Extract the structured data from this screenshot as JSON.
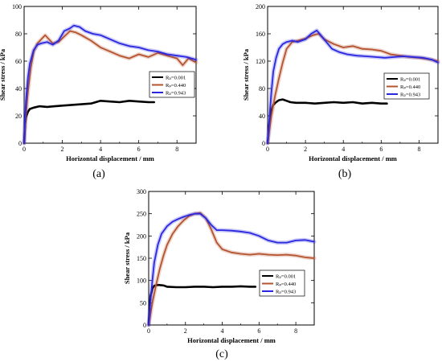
{
  "chart_data": [
    {
      "type": "line",
      "panel_label": "(a)",
      "xlabel": "Horizontal displacement / mm",
      "ylabel": "Shear stress / kPa",
      "xlim": [
        0,
        9
      ],
      "ylim": [
        0,
        100
      ],
      "xticks": [
        0,
        2,
        4,
        6,
        8
      ],
      "yticks": [
        0,
        20,
        40,
        60,
        80,
        100
      ],
      "legend_position": "right-middle",
      "series": [
        {
          "name": "Rₚ=0.001",
          "color": "#000000",
          "x": [
            0,
            0.05,
            0.1,
            0.2,
            0.3,
            0.5,
            0.8,
            1.2,
            1.6,
            2.0,
            2.5,
            3.0,
            3.5,
            4.0,
            4.5,
            5.0,
            5.5,
            6.0,
            6.5,
            6.8
          ],
          "y": [
            0,
            14,
            19,
            23,
            25,
            26,
            27,
            26.5,
            27,
            27.5,
            28,
            28.5,
            29,
            31,
            30.5,
            30,
            31,
            30.5,
            30,
            30
          ]
        },
        {
          "name": "Rₚ=0.440",
          "color": "#b5532f",
          "x": [
            0,
            0.1,
            0.2,
            0.35,
            0.5,
            0.7,
            0.9,
            1.1,
            1.3,
            1.5,
            1.8,
            2.1,
            2.4,
            2.7,
            3.0,
            3.5,
            4.0,
            4.5,
            5.0,
            5.5,
            6.0,
            6.5,
            7.0,
            7.5,
            8.0,
            8.3,
            8.6,
            9.0
          ],
          "y": [
            0,
            22,
            38,
            55,
            67,
            73,
            76,
            79,
            76,
            73,
            74,
            78,
            82,
            81,
            79,
            75,
            70,
            67,
            64,
            62,
            65,
            63,
            66,
            64,
            62,
            57,
            62,
            59
          ]
        },
        {
          "name": "Rₚ=0.943",
          "color": "#2a27e0",
          "x": [
            0,
            0.05,
            0.1,
            0.2,
            0.3,
            0.5,
            0.7,
            0.9,
            1.2,
            1.5,
            1.8,
            2.1,
            2.4,
            2.6,
            2.9,
            3.2,
            3.6,
            4.0,
            4.5,
            5.0,
            5.5,
            6.0,
            6.5,
            7.0,
            7.5,
            8.0,
            8.5,
            9.0
          ],
          "y": [
            0,
            18,
            32,
            48,
            58,
            68,
            72,
            73,
            74,
            72,
            75,
            82,
            84,
            86,
            85,
            82,
            80,
            79,
            76,
            73,
            71,
            70,
            68,
            67,
            65,
            64,
            63,
            61
          ]
        }
      ]
    },
    {
      "type": "line",
      "panel_label": "(b)",
      "xlabel": "Horizontal displacement / mm",
      "ylabel": "Shear stress / kPa",
      "xlim": [
        0,
        9
      ],
      "ylim": [
        0,
        200
      ],
      "xticks": [
        0,
        2,
        4,
        6,
        8
      ],
      "yticks": [
        0,
        40,
        80,
        120,
        160,
        200
      ],
      "legend_position": "right-middle",
      "series": [
        {
          "name": "Rₚ=0.001",
          "color": "#000000",
          "x": [
            0,
            0.1,
            0.2,
            0.3,
            0.45,
            0.6,
            0.8,
            1.0,
            1.2,
            1.5,
            2.0,
            2.5,
            3.0,
            3.5,
            4.0,
            4.5,
            5.0,
            5.5,
            6.0,
            6.3
          ],
          "y": [
            0,
            30,
            48,
            56,
            60,
            63,
            64,
            62,
            60,
            59,
            59,
            58,
            59,
            60,
            59,
            60,
            58,
            59,
            58,
            58
          ]
        },
        {
          "name": "Rₚ=0.440",
          "color": "#b5532f",
          "x": [
            0,
            0.2,
            0.4,
            0.6,
            0.8,
            1.0,
            1.3,
            1.6,
            2.0,
            2.4,
            2.7,
            3.0,
            3.5,
            4.0,
            4.5,
            5.0,
            5.5,
            6.0,
            6.5,
            7.0,
            7.5,
            8.0,
            8.5,
            9.0
          ],
          "y": [
            0,
            40,
            70,
            95,
            118,
            138,
            148,
            150,
            153,
            158,
            160,
            152,
            145,
            140,
            142,
            138,
            137,
            135,
            130,
            128,
            126,
            125,
            123,
            120
          ]
        },
        {
          "name": "Rₚ=0.943",
          "color": "#2a27e0",
          "x": [
            0,
            0.1,
            0.2,
            0.3,
            0.45,
            0.6,
            0.8,
            1.0,
            1.3,
            1.6,
            2.0,
            2.3,
            2.6,
            2.8,
            3.1,
            3.4,
            3.8,
            4.2,
            4.7,
            5.2,
            5.7,
            6.2,
            6.7,
            7.2,
            7.7,
            8.2,
            8.7,
            9.0
          ],
          "y": [
            0,
            40,
            75,
            105,
            125,
            138,
            145,
            148,
            150,
            148,
            152,
            160,
            165,
            158,
            148,
            138,
            133,
            130,
            128,
            127,
            126,
            125,
            126,
            127,
            126,
            125,
            122,
            118
          ]
        }
      ]
    },
    {
      "type": "line",
      "panel_label": "(c)",
      "xlabel": "Horizontal displacement / mm",
      "ylabel": "Shear stress / kPa",
      "xlim": [
        0,
        9
      ],
      "ylim": [
        0,
        300
      ],
      "xticks": [
        0,
        2,
        4,
        6,
        8
      ],
      "yticks": [
        0,
        50,
        100,
        150,
        200,
        250,
        300
      ],
      "legend_position": "right-middle",
      "series": [
        {
          "name": "Rₚ=0.001",
          "color": "#000000",
          "x": [
            0,
            0.05,
            0.1,
            0.2,
            0.3,
            0.5,
            0.8,
            1.0,
            1.5,
            2.0,
            2.5,
            3.0,
            3.5,
            4.0,
            4.5,
            5.0,
            5.5,
            5.8
          ],
          "y": [
            0,
            40,
            65,
            82,
            88,
            90,
            89,
            86,
            85,
            85,
            86,
            86,
            85,
            86,
            86,
            87,
            86,
            86
          ]
        },
        {
          "name": "Rₚ=0.440",
          "color": "#b5532f",
          "x": [
            0,
            0.2,
            0.4,
            0.6,
            0.8,
            1.0,
            1.3,
            1.6,
            1.9,
            2.2,
            2.5,
            2.8,
            3.1,
            3.4,
            3.7,
            4.0,
            4.5,
            5.0,
            5.5,
            6.0,
            6.5,
            7.0,
            7.5,
            8.0,
            8.5,
            9.0
          ],
          "y": [
            0,
            50,
            90,
            125,
            155,
            180,
            205,
            222,
            235,
            245,
            250,
            252,
            240,
            215,
            185,
            170,
            163,
            160,
            158,
            160,
            158,
            157,
            158,
            156,
            152,
            150
          ]
        },
        {
          "name": "Rₚ=0.943",
          "color": "#2a27e0",
          "x": [
            0,
            0.1,
            0.2,
            0.3,
            0.5,
            0.7,
            1.0,
            1.3,
            1.6,
            1.9,
            2.2,
            2.5,
            2.8,
            3.1,
            3.4,
            3.7,
            4.0,
            4.5,
            5.0,
            5.5,
            6.0,
            6.5,
            7.0,
            7.5,
            8.0,
            8.5,
            9.0
          ],
          "y": [
            0,
            55,
            100,
            140,
            180,
            205,
            222,
            232,
            238,
            243,
            247,
            250,
            250,
            240,
            225,
            213,
            213,
            212,
            210,
            207,
            200,
            190,
            185,
            185,
            190,
            191,
            187
          ]
        }
      ]
    }
  ]
}
